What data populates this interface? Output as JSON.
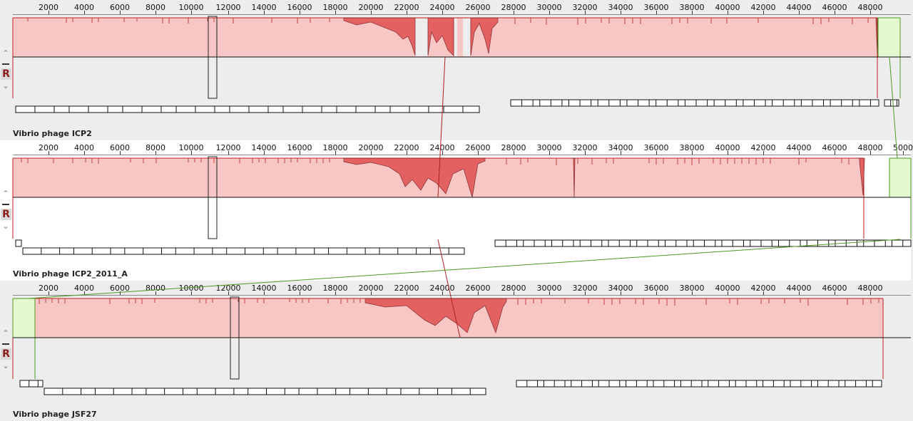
{
  "genomes": [
    {
      "name": "Vibrio phage ICP2",
      "ruler_ticks": [
        "2000",
        "4000",
        "6000",
        "8000",
        "10000",
        "12000",
        "14000",
        "16000",
        "18000",
        "20000",
        "22000",
        "24000",
        "26000",
        "28000",
        "30000",
        "32000",
        "34000",
        "36000",
        "38000",
        "40000",
        "42000",
        "44000",
        "46000",
        "48000"
      ]
    },
    {
      "name": "Vibrio phage ICP2_2011_A",
      "ruler_ticks": [
        "2000",
        "4000",
        "6000",
        "8000",
        "10000",
        "12000",
        "14000",
        "16000",
        "18000",
        "20000",
        "22000",
        "24000",
        "26000",
        "28000",
        "30000",
        "32000",
        "34000",
        "36000",
        "38000",
        "40000",
        "42000",
        "44000",
        "46000",
        "48000",
        "5000"
      ]
    },
    {
      "name": "Vibrio phage JSF27",
      "ruler_ticks": [
        "2000",
        "4000",
        "6000",
        "8000",
        "10000",
        "12000",
        "14000",
        "16000",
        "18000",
        "20000",
        "22000",
        "24000",
        "26000",
        "28000",
        "30000",
        "32000",
        "34000",
        "36000",
        "38000",
        "40000",
        "42000",
        "44000",
        "46000",
        "48000"
      ]
    }
  ],
  "controls": {
    "up": "⌃",
    "reverse": "R",
    "down": "⌄"
  },
  "colors": {
    "block_red": "#f9c6c6",
    "block_red_edge": "#c41e1e",
    "block_green": "#e3f8cf",
    "block_green_edge": "#4c9a1e"
  }
}
